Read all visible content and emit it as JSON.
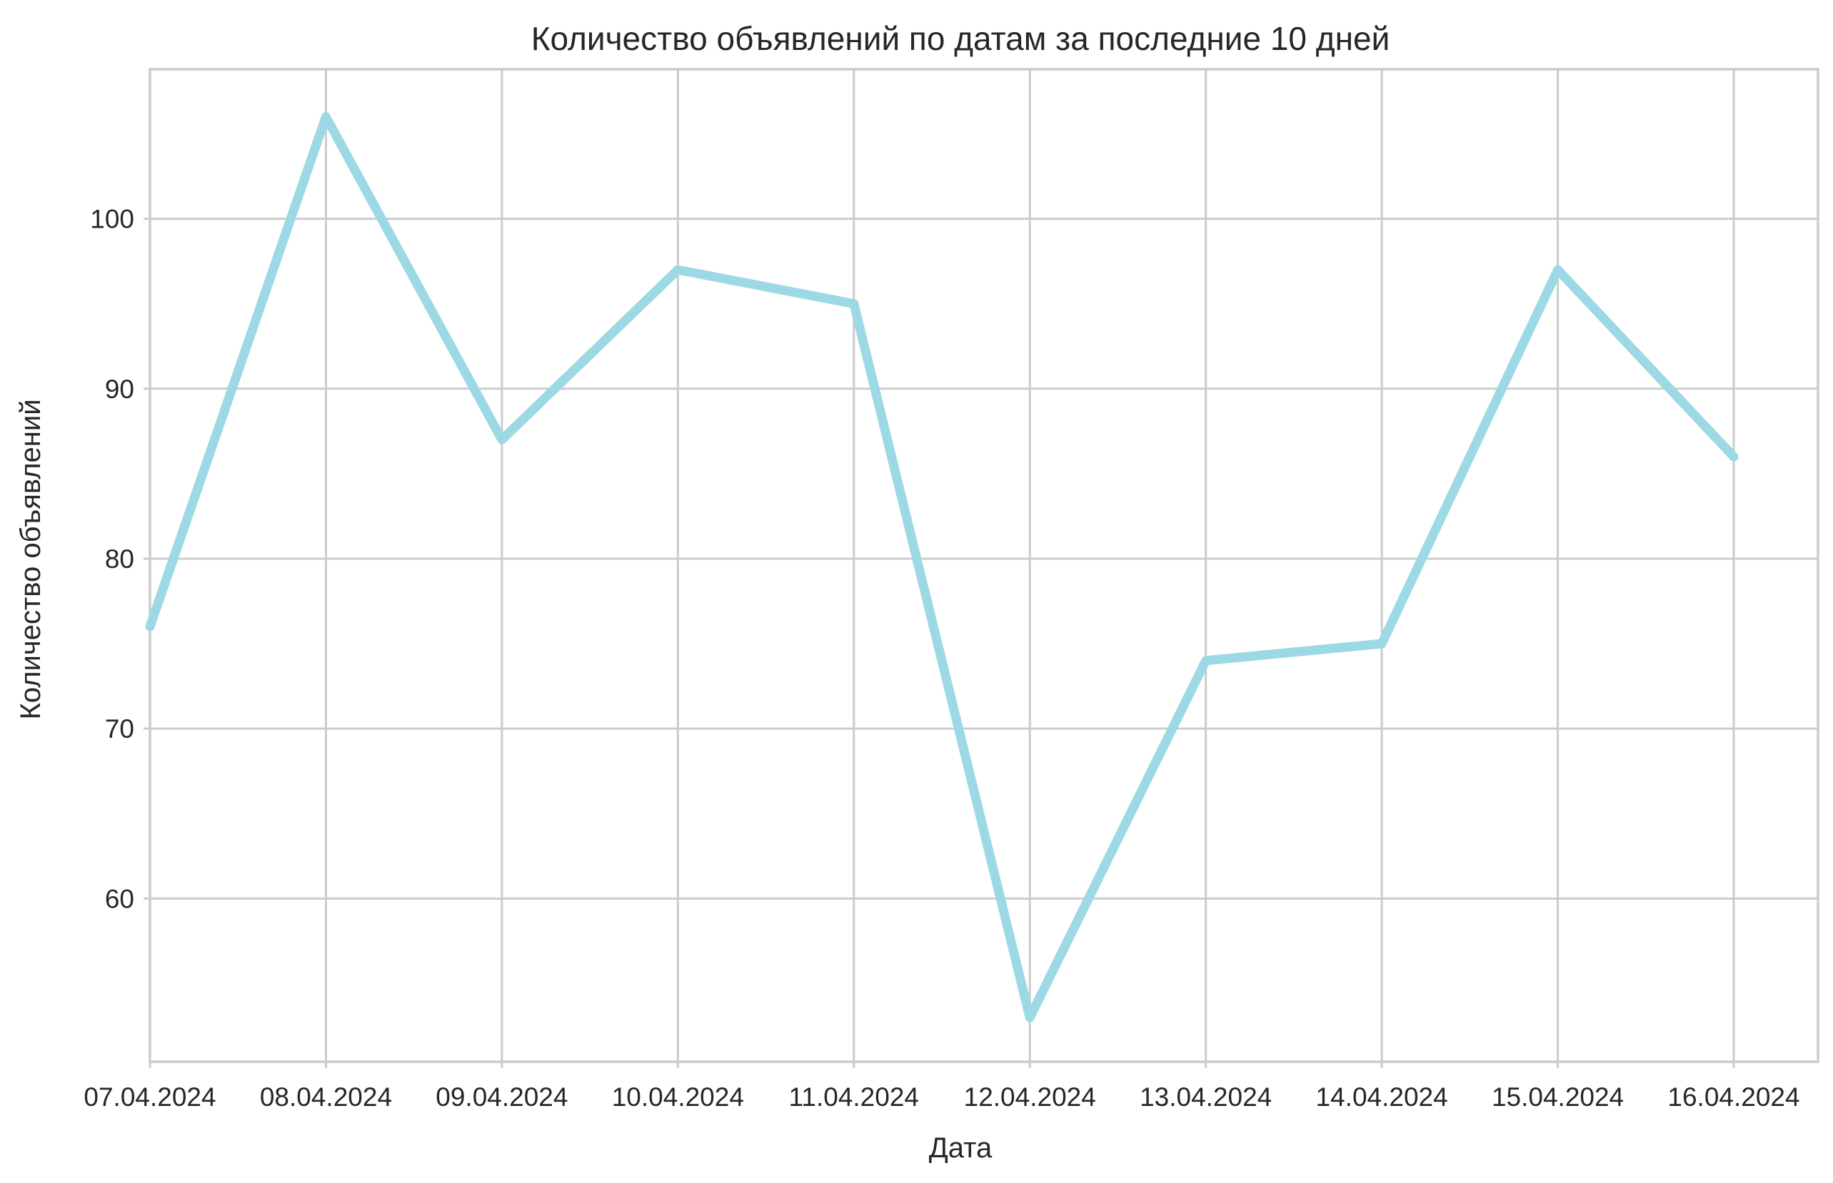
{
  "chart_data": {
    "type": "line",
    "title": "Количество объявлений по датам за последние 10 дней",
    "xlabel": "Дата",
    "ylabel": "Количество объявлений",
    "categories": [
      "07.04.2024",
      "08.04.2024",
      "09.04.2024",
      "10.04.2024",
      "11.04.2024",
      "12.04.2024",
      "13.04.2024",
      "14.04.2024",
      "15.04.2024",
      "16.04.2024"
    ],
    "series": [
      {
        "values": [
          76,
          106,
          87,
          97,
          95,
          53,
          74,
          75,
          97,
          86
        ],
        "color": "#9dd9e5"
      }
    ],
    "yticks": [
      60,
      70,
      80,
      90,
      100
    ],
    "ylim": [
      50.4,
      108.8
    ],
    "xlim": [
      "07.04.2024",
      "16.04.2024"
    ],
    "grid": true,
    "legend": false
  }
}
